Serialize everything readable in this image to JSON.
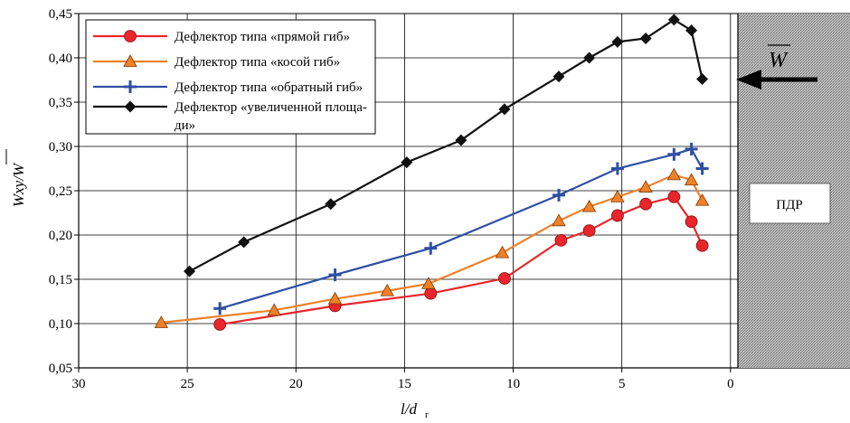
{
  "chart_data": {
    "type": "line",
    "xlabel": "l/d",
    "xlabel_sub": "г",
    "ylabel": "Wxy/W",
    "xlim": [
      30,
      -5.5
    ],
    "ylim": [
      0.05,
      0.45
    ],
    "x_ticks": [
      "30",
      "25",
      "20",
      "15",
      "10",
      "5",
      "0"
    ],
    "y_ticks": [
      "0,05",
      "0,10",
      "0,15",
      "0,20",
      "0,25",
      "0,30",
      "0,35",
      "0,40",
      "0,45"
    ],
    "grid": true,
    "legend_position": "top-left",
    "series": [
      {
        "name": "Дефлектор типа «прямой гиб»",
        "color": "#e8262b",
        "marker": "circle",
        "points": [
          [
            23.5,
            0.099
          ],
          [
            18.2,
            0.12
          ],
          [
            13.8,
            0.134
          ],
          [
            10.4,
            0.151
          ],
          [
            7.8,
            0.194
          ],
          [
            6.5,
            0.205
          ],
          [
            5.2,
            0.222
          ],
          [
            3.9,
            0.235
          ],
          [
            2.6,
            0.243
          ],
          [
            1.8,
            0.215
          ],
          [
            1.3,
            0.188
          ]
        ]
      },
      {
        "name": "Дефлектор типа «косой гиб»",
        "color": "#f08127",
        "marker": "triangle",
        "points": [
          [
            26.2,
            0.101
          ],
          [
            21.0,
            0.115
          ],
          [
            18.2,
            0.128
          ],
          [
            15.8,
            0.137
          ],
          [
            13.9,
            0.145
          ],
          [
            10.5,
            0.18
          ],
          [
            7.9,
            0.216
          ],
          [
            6.5,
            0.232
          ],
          [
            5.2,
            0.243
          ],
          [
            3.9,
            0.254
          ],
          [
            2.6,
            0.268
          ],
          [
            1.8,
            0.262
          ],
          [
            1.3,
            0.239
          ]
        ]
      },
      {
        "name": "Дефлектор типа «обратный гиб»",
        "color": "#2e4fa3",
        "marker": "plus",
        "points": [
          [
            23.5,
            0.117
          ],
          [
            18.2,
            0.155
          ],
          [
            13.8,
            0.185
          ],
          [
            7.9,
            0.245
          ],
          [
            5.2,
            0.275
          ],
          [
            2.6,
            0.291
          ],
          [
            1.8,
            0.297
          ],
          [
            1.3,
            0.275
          ]
        ]
      },
      {
        "name": "Дефлектор «увеличенной площади»",
        "name_lines": [
          "Дефлектор «увеличенной площа-",
          "ди»"
        ],
        "color": "#111111",
        "marker": "diamond",
        "points": [
          [
            24.9,
            0.159
          ],
          [
            22.4,
            0.192
          ],
          [
            18.4,
            0.235
          ],
          [
            14.9,
            0.282
          ],
          [
            12.4,
            0.307
          ],
          [
            10.4,
            0.342
          ],
          [
            7.9,
            0.379
          ],
          [
            6.5,
            0.4
          ],
          [
            5.2,
            0.418
          ],
          [
            3.9,
            0.422
          ],
          [
            2.6,
            0.443
          ],
          [
            1.8,
            0.431
          ],
          [
            1.3,
            0.376
          ]
        ]
      }
    ],
    "annotations": {
      "region_label": "ПДР",
      "arrow_label": "W"
    }
  }
}
